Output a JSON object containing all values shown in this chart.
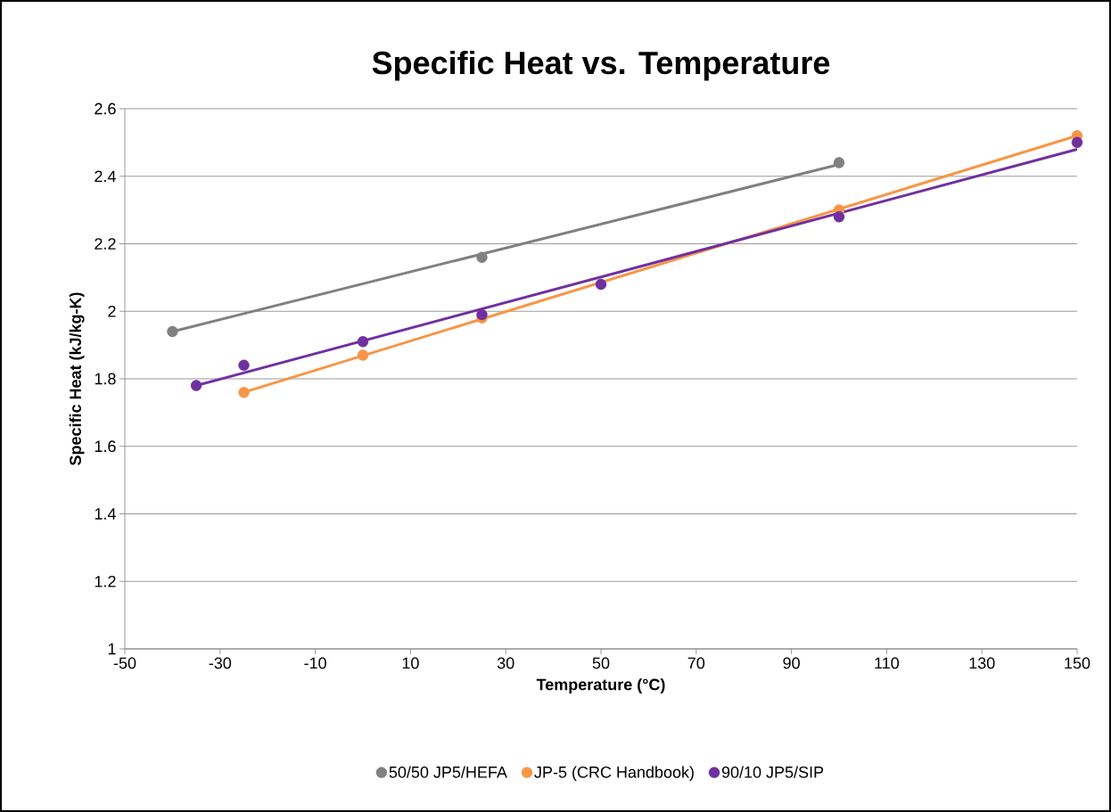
{
  "chart_data": {
    "type": "scatter",
    "title": "Specific Heat vs. Temperature",
    "xlabel": "Temperature (°C)",
    "ylabel": "Specific Heat (kJ/kg-K)",
    "xlim": [
      -50,
      150
    ],
    "ylim": [
      1,
      2.6
    ],
    "xticks": [
      -50,
      -30,
      -10,
      10,
      30,
      50,
      70,
      90,
      110,
      130,
      150
    ],
    "yticks": [
      1,
      1.2,
      1.4,
      1.6,
      1.8,
      2,
      2.2,
      2.4,
      2.6
    ],
    "grid": "y",
    "legend": "bottom",
    "marker": "circle",
    "series": [
      {
        "name": "50/50 JP5/HEFA",
        "type": "scatter",
        "color": "#808080",
        "x": [
          -40,
          25,
          100
        ],
        "values": [
          1.94,
          2.16,
          2.44
        ]
      },
      {
        "name": "JP-5 (CRC Handbook)",
        "type": "scatter",
        "color": "#f79646",
        "x": [
          -25,
          0,
          25,
          50,
          100,
          150
        ],
        "values": [
          1.76,
          1.87,
          1.98,
          null,
          2.3,
          2.52
        ]
      },
      {
        "name": "90/10 JP5/SIP",
        "type": "scatter",
        "color": "#7030a0",
        "x": [
          -35,
          -25,
          0,
          25,
          50,
          100,
          150
        ],
        "values": [
          1.78,
          1.84,
          1.91,
          1.99,
          2.08,
          2.28,
          2.5
        ]
      },
      {
        "type": "line",
        "color": "#808080",
        "marker": "none",
        "x": [
          -40,
          100
        ],
        "values": [
          1.94,
          2.435
        ]
      },
      {
        "type": "line",
        "color": "#f79646",
        "marker": "none",
        "x": [
          -25,
          150
        ],
        "values": [
          1.76,
          2.52
        ]
      },
      {
        "type": "line",
        "color": "#7030a0",
        "marker": "none",
        "x": [
          -35,
          150
        ],
        "values": [
          1.78,
          2.48
        ]
      }
    ]
  }
}
